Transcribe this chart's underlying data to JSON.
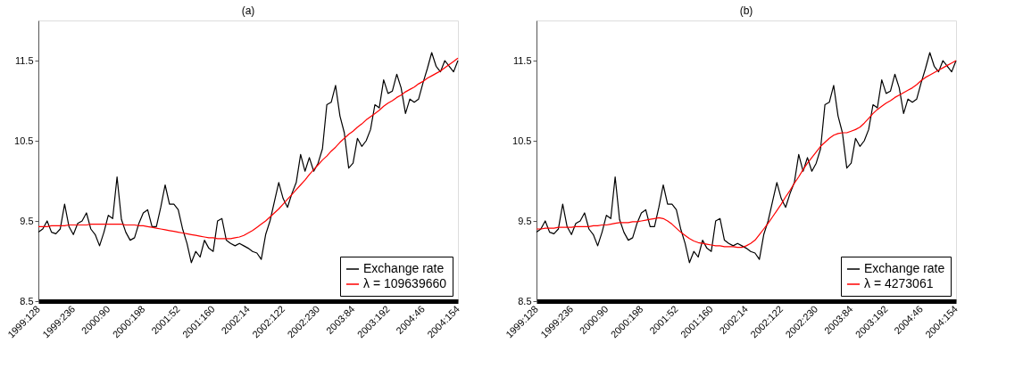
{
  "chart_data": [
    {
      "type": "line",
      "title": "(a)",
      "categories": [
        "1999:128",
        null,
        null,
        null,
        null,
        null,
        null,
        null,
        "1999:236",
        null,
        null,
        null,
        null,
        null,
        null,
        null,
        "2000:90",
        null,
        null,
        null,
        null,
        null,
        null,
        null,
        "2000:198",
        null,
        null,
        null,
        null,
        null,
        null,
        null,
        "2001:52",
        null,
        null,
        null,
        null,
        null,
        null,
        null,
        "2001:160",
        null,
        null,
        null,
        null,
        null,
        null,
        null,
        "2002:14",
        null,
        null,
        null,
        null,
        null,
        null,
        null,
        "2002:122",
        null,
        null,
        null,
        null,
        null,
        null,
        null,
        "2002:230",
        null,
        null,
        null,
        null,
        null,
        null,
        null,
        "2003:84",
        null,
        null,
        null,
        null,
        null,
        null,
        null,
        "2003:192",
        null,
        null,
        null,
        null,
        null,
        null,
        null,
        "2004:46",
        null,
        null,
        null,
        null,
        null,
        null,
        null,
        "2004:154"
      ],
      "ylim": [
        8.5,
        12
      ],
      "yticks": [
        8.5,
        9.5,
        10.5,
        11.5
      ],
      "grid": false,
      "legend": "bottom right",
      "series": [
        {
          "name": "Exchange rate",
          "color": "#000000",
          "values": [
            9.36,
            9.4,
            9.5,
            9.36,
            9.34,
            9.4,
            9.71,
            9.43,
            9.33,
            9.47,
            9.5,
            9.6,
            9.4,
            9.33,
            9.19,
            9.36,
            9.57,
            9.53,
            10.05,
            9.52,
            9.36,
            9.26,
            9.29,
            9.47,
            9.6,
            9.64,
            9.43,
            9.43,
            9.67,
            9.95,
            9.71,
            9.71,
            9.64,
            9.4,
            9.22,
            8.98,
            9.12,
            9.05,
            9.26,
            9.16,
            9.12,
            9.5,
            9.53,
            9.26,
            9.22,
            9.19,
            9.22,
            9.19,
            9.16,
            9.12,
            9.1,
            9.02,
            9.33,
            9.5,
            9.74,
            9.98,
            9.78,
            9.67,
            9.84,
            9.98,
            10.33,
            10.12,
            10.29,
            10.12,
            10.22,
            10.4,
            10.95,
            10.98,
            11.19,
            10.81,
            10.6,
            10.16,
            10.22,
            10.53,
            10.43,
            10.5,
            10.64,
            10.95,
            10.91,
            11.26,
            11.09,
            11.12,
            11.33,
            11.16,
            10.84,
            11.02,
            10.98,
            11.02,
            11.22,
            11.4,
            11.6,
            11.43,
            11.36,
            11.5,
            11.43,
            11.36,
            11.5
          ]
        },
        {
          "name": "λ = 109639660",
          "color": "#ff0000",
          "values": [
            9.43,
            9.43,
            9.43,
            9.44,
            9.44,
            9.44,
            9.44,
            9.45,
            9.45,
            9.45,
            9.45,
            9.45,
            9.46,
            9.46,
            9.46,
            9.46,
            9.46,
            9.46,
            9.46,
            9.46,
            9.45,
            9.45,
            9.45,
            9.44,
            9.44,
            9.43,
            9.42,
            9.41,
            9.4,
            9.39,
            9.38,
            9.37,
            9.36,
            9.35,
            9.34,
            9.33,
            9.32,
            9.31,
            9.3,
            9.29,
            9.29,
            9.28,
            9.28,
            9.28,
            9.28,
            9.29,
            9.3,
            9.32,
            9.35,
            9.38,
            9.42,
            9.46,
            9.5,
            9.55,
            9.6,
            9.65,
            9.71,
            9.77,
            9.83,
            9.89,
            9.95,
            10.01,
            10.08,
            10.14,
            10.2,
            10.26,
            10.31,
            10.37,
            10.42,
            10.48,
            10.53,
            10.58,
            10.62,
            10.67,
            10.71,
            10.76,
            10.8,
            10.84,
            10.88,
            10.93,
            10.97,
            11.0,
            11.04,
            11.07,
            11.11,
            11.14,
            11.17,
            11.21,
            11.24,
            11.28,
            11.31,
            11.34,
            11.37,
            11.41,
            11.45,
            11.49,
            11.53
          ]
        }
      ]
    },
    {
      "type": "line",
      "title": "(b)",
      "categories": [
        "1999:128",
        null,
        null,
        null,
        null,
        null,
        null,
        null,
        "1999:236",
        null,
        null,
        null,
        null,
        null,
        null,
        null,
        "2000:90",
        null,
        null,
        null,
        null,
        null,
        null,
        null,
        "2000:198",
        null,
        null,
        null,
        null,
        null,
        null,
        null,
        "2001:52",
        null,
        null,
        null,
        null,
        null,
        null,
        null,
        "2001:160",
        null,
        null,
        null,
        null,
        null,
        null,
        null,
        "2002:14",
        null,
        null,
        null,
        null,
        null,
        null,
        null,
        "2002:122",
        null,
        null,
        null,
        null,
        null,
        null,
        null,
        "2002:230",
        null,
        null,
        null,
        null,
        null,
        null,
        null,
        "2003:84",
        null,
        null,
        null,
        null,
        null,
        null,
        null,
        "2003:192",
        null,
        null,
        null,
        null,
        null,
        null,
        null,
        "2004:46",
        null,
        null,
        null,
        null,
        null,
        null,
        null,
        "2004:154"
      ],
      "ylim": [
        8.5,
        12
      ],
      "yticks": [
        8.5,
        9.5,
        10.5,
        11.5
      ],
      "grid": false,
      "legend": "bottom right",
      "series": [
        {
          "name": "Exchange rate",
          "color": "#000000",
          "values": [
            9.36,
            9.4,
            9.5,
            9.36,
            9.34,
            9.4,
            9.71,
            9.43,
            9.33,
            9.47,
            9.5,
            9.6,
            9.4,
            9.33,
            9.19,
            9.36,
            9.57,
            9.53,
            10.05,
            9.52,
            9.36,
            9.26,
            9.29,
            9.47,
            9.6,
            9.64,
            9.43,
            9.43,
            9.67,
            9.95,
            9.71,
            9.71,
            9.64,
            9.4,
            9.22,
            8.98,
            9.12,
            9.05,
            9.26,
            9.16,
            9.12,
            9.5,
            9.53,
            9.26,
            9.22,
            9.19,
            9.22,
            9.19,
            9.16,
            9.12,
            9.1,
            9.02,
            9.33,
            9.5,
            9.74,
            9.98,
            9.78,
            9.67,
            9.84,
            9.98,
            10.33,
            10.12,
            10.29,
            10.12,
            10.22,
            10.4,
            10.95,
            10.98,
            11.19,
            10.81,
            10.6,
            10.16,
            10.22,
            10.53,
            10.43,
            10.5,
            10.64,
            10.95,
            10.91,
            11.26,
            11.09,
            11.12,
            11.33,
            11.16,
            10.84,
            11.02,
            10.98,
            11.02,
            11.22,
            11.4,
            11.6,
            11.43,
            11.36,
            11.5,
            11.43,
            11.36,
            11.5
          ]
        },
        {
          "name": "λ = 4273061",
          "color": "#ff0000",
          "values": [
            9.4,
            9.4,
            9.41,
            9.41,
            9.41,
            9.42,
            9.42,
            9.42,
            9.42,
            9.43,
            9.43,
            9.43,
            9.43,
            9.44,
            9.44,
            9.45,
            9.45,
            9.46,
            9.47,
            9.48,
            9.48,
            9.48,
            9.49,
            9.49,
            9.5,
            9.51,
            9.52,
            9.53,
            9.54,
            9.53,
            9.5,
            9.46,
            9.41,
            9.36,
            9.32,
            9.28,
            9.25,
            9.23,
            9.22,
            9.21,
            9.2,
            9.19,
            9.19,
            9.18,
            9.18,
            9.18,
            9.17,
            9.17,
            9.19,
            9.22,
            9.26,
            9.33,
            9.4,
            9.47,
            9.55,
            9.63,
            9.71,
            9.8,
            9.88,
            9.97,
            10.05,
            10.14,
            10.22,
            10.29,
            10.36,
            10.43,
            10.48,
            10.53,
            10.57,
            10.59,
            10.6,
            10.6,
            10.62,
            10.64,
            10.67,
            10.72,
            10.78,
            10.84,
            10.89,
            10.93,
            10.97,
            11.0,
            11.04,
            11.07,
            11.1,
            11.13,
            11.16,
            11.2,
            11.25,
            11.29,
            11.32,
            11.35,
            11.38,
            11.41,
            11.44,
            11.47,
            11.5
          ]
        }
      ]
    }
  ]
}
